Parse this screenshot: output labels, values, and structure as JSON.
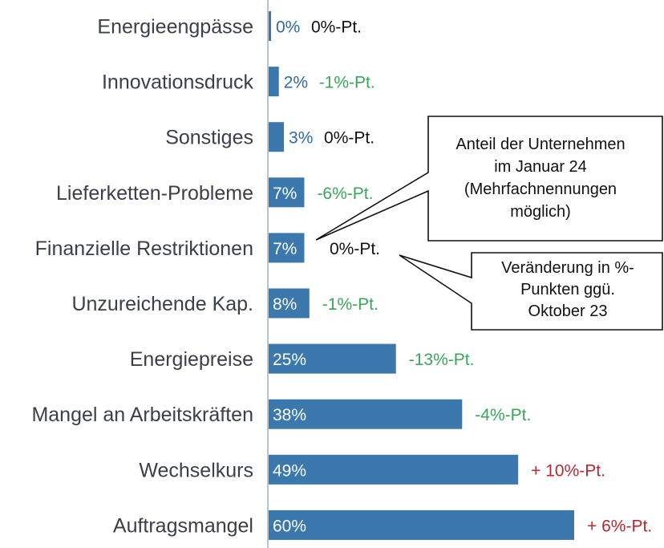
{
  "chart_data": {
    "type": "bar",
    "orientation": "horizontal",
    "categories": [
      "Energieengpässe",
      "Innovationsdruck",
      "Sonstiges",
      "Lieferketten-Probleme",
      "Finanzielle Restriktionen",
      "Unzureichende Kap.",
      "Energiepreise",
      "Mangel an Arbeitskräften",
      "Wechselkurs",
      "Auftragsmangel"
    ],
    "values": [
      0,
      2,
      3,
      7,
      7,
      8,
      25,
      38,
      49,
      60
    ],
    "value_labels": [
      "0%",
      "2%",
      "3%",
      "7%",
      "7%",
      "8%",
      "25%",
      "38%",
      "49%",
      "60%"
    ],
    "changes": [
      "0%-Pt.",
      "-1%-Pt.",
      "0%-Pt.",
      "-6%-Pt.",
      "0%-Pt.",
      "-1%-Pt.",
      "-13%-Pt.",
      "-4%-Pt.",
      "+ 10%-Pt.",
      "+ 6%-Pt."
    ],
    "change_direction": [
      "neutral",
      "down",
      "neutral",
      "down",
      "neutral",
      "down",
      "down",
      "down",
      "up",
      "up"
    ],
    "xlim": [
      0,
      60
    ],
    "grid": false,
    "legend": "none",
    "colors": {
      "bar": "#3a78ad",
      "value_label_outside": "#2f6aa3",
      "value_label_inside": "#ffffff",
      "change_neutral": "#111111",
      "change_down": "#3aa55b",
      "change_up": "#b8282e",
      "axis_line": "#b9c3cc"
    },
    "annotations": [
      {
        "id": "share",
        "lines": [
          "Anteil der Unternehmen",
          "im Januar 24",
          "(Mehrfachnennungen",
          "möglich)"
        ]
      },
      {
        "id": "change",
        "lines": [
          "Veränderung in %-",
          "Punkten ggü.",
          "Oktober 23"
        ]
      }
    ]
  }
}
